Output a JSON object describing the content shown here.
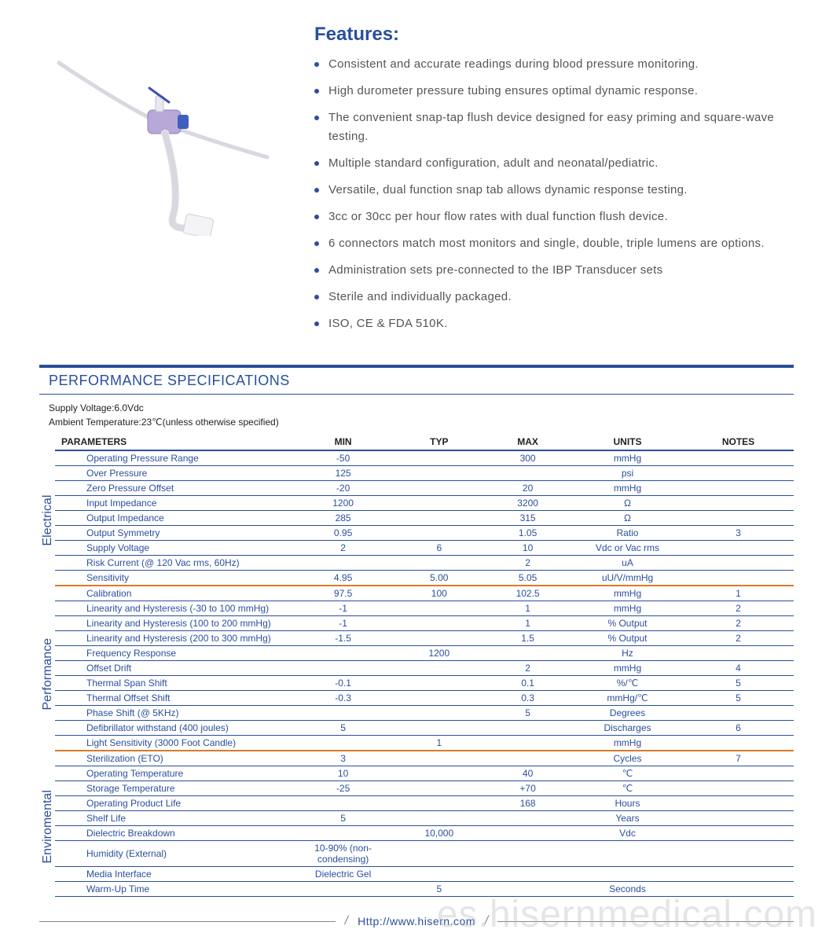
{
  "colors": {
    "accent": "#2a4f9c",
    "group_divider": "#d97a2a",
    "text": "#555",
    "watermark": "rgba(180,180,180,0.35)"
  },
  "features": {
    "title": "Features:",
    "items": [
      "Consistent and accurate readings during blood pressure monitoring.",
      "High durometer pressure tubing ensures optimal dynamic response.",
      "The convenient snap-tap flush device designed for easy priming and square-wave testing.",
      "Multiple standard configuration, adult and neonatal/pediatric.",
      "Versatile, dual function snap tab allows dynamic response testing.",
      "3cc or 30cc per hour flow rates with dual function flush device.",
      "6 connectors match most monitors and single, double, triple lumens are options.",
      "Administration sets pre-connected to the IBP Transducer sets",
      "Sterile and individually packaged.",
      "ISO, CE & FDA 510K."
    ]
  },
  "specs": {
    "heading": "PERFORMANCE SPECIFICATIONS",
    "meta": [
      "Supply Voltage:6.0Vdc",
      "Ambient Temperature:23℃(unless otherwise specified)"
    ],
    "columns": [
      "PARAMETERS",
      "MIN",
      "TYP",
      "MAX",
      "UNITS",
      "NOTES"
    ],
    "col_widths": [
      "32%",
      "14%",
      "12%",
      "12%",
      "15%",
      "15%"
    ],
    "groups": [
      {
        "label": "Electrical",
        "rows": [
          {
            "param": "Operating Pressure Range",
            "min": "-50",
            "typ": "",
            "max": "300",
            "units": "mmHg",
            "notes": ""
          },
          {
            "param": "Over  Pressure",
            "min": "125",
            "typ": "",
            "max": "",
            "units": "psi",
            "notes": ""
          },
          {
            "param": "Zero Pressure Offset",
            "min": "-20",
            "typ": "",
            "max": "20",
            "units": "mmHg",
            "notes": ""
          },
          {
            "param": "Input Impedance",
            "min": "1200",
            "typ": "",
            "max": "3200",
            "units": "Ω",
            "notes": ""
          },
          {
            "param": "Output Impedance",
            "min": "285",
            "typ": "",
            "max": "315",
            "units": "Ω",
            "notes": ""
          },
          {
            "param": "Output Symmetry",
            "min": "0.95",
            "typ": "",
            "max": "1.05",
            "units": "Ratio",
            "notes": "3"
          },
          {
            "param": "Supply Voltage",
            "min": "2",
            "typ": "6",
            "max": "10",
            "units": "Vdc or Vac rms",
            "notes": ""
          },
          {
            "param": "Risk Current (@ 120 Vac rms, 60Hz)",
            "min": "",
            "typ": "",
            "max": "2",
            "units": "uA",
            "notes": ""
          },
          {
            "param": "Sensitivity",
            "min": "4.95",
            "typ": "5.00",
            "max": "5.05",
            "units": "uU/V/mmHg",
            "notes": ""
          }
        ]
      },
      {
        "label": "Performance",
        "rows": [
          {
            "param": "Calibration",
            "min": "97.5",
            "typ": "100",
            "max": "102.5",
            "units": "mmHg",
            "notes": "1"
          },
          {
            "param": "Linearity and Hysteresis (-30 to 100 mmHg)",
            "min": "-1",
            "typ": "",
            "max": "1",
            "units": "mmHg",
            "notes": "2"
          },
          {
            "param": "Linearity and Hysteresis (100 to 200 mmHg)",
            "min": "-1",
            "typ": "",
            "max": "1",
            "units": "% Output",
            "notes": "2"
          },
          {
            "param": "Linearity and Hysteresis (200 to 300 mmHg)",
            "min": "-1.5",
            "typ": "",
            "max": "1.5",
            "units": "% Output",
            "notes": "2"
          },
          {
            "param": "Frequency Response",
            "min": "",
            "typ": "1200",
            "max": "",
            "units": "Hz",
            "notes": ""
          },
          {
            "param": "Offset Drift",
            "min": "",
            "typ": "",
            "max": "2",
            "units": "mmHg",
            "notes": "4"
          },
          {
            "param": "Thermal Span Shift",
            "min": "-0.1",
            "typ": "",
            "max": "0.1",
            "units": "%/℃",
            "notes": "5"
          },
          {
            "param": "Thermal Offset Shift",
            "min": "-0.3",
            "typ": "",
            "max": "0.3",
            "units": "mmHg/℃",
            "notes": "5"
          },
          {
            "param": "Phase Shift (@ 5KHz)",
            "min": "",
            "typ": "",
            "max": "5",
            "units": "Degrees",
            "notes": ""
          },
          {
            "param": "Defibrillator withstand (400 joules)",
            "min": "5",
            "typ": "",
            "max": "",
            "units": "Discharges",
            "notes": "6"
          },
          {
            "param": "Light Sensitivity (3000 Foot Candle)",
            "min": "",
            "typ": "1",
            "max": "",
            "units": "mmHg",
            "notes": ""
          }
        ]
      },
      {
        "label": "Enviromental",
        "rows": [
          {
            "param": "Sterilization (ETO)",
            "min": "3",
            "typ": "",
            "max": "",
            "units": "Cycles",
            "notes": "7"
          },
          {
            "param": "Operating Temperature",
            "min": "10",
            "typ": "",
            "max": "40",
            "units": "℃",
            "notes": ""
          },
          {
            "param": "Storage Temperature",
            "min": "-25",
            "typ": "",
            "max": "+70",
            "units": "℃",
            "notes": ""
          },
          {
            "param": "Operating Product Life",
            "min": "",
            "typ": "",
            "max": "168",
            "units": "Hours",
            "notes": ""
          },
          {
            "param": "Shelf Life",
            "min": "5",
            "typ": "",
            "max": "",
            "units": "Years",
            "notes": ""
          },
          {
            "param": "Dielectric Breakdown",
            "min": "",
            "typ": "10,000",
            "max": "",
            "units": "Vdc",
            "notes": ""
          },
          {
            "param": "Humidity (External)",
            "min": "10-90% (non-condensing)",
            "typ": "",
            "max": "",
            "units": "",
            "notes": ""
          },
          {
            "param": "Media Interface",
            "min": "Dielectric Gel",
            "typ": "",
            "max": "",
            "units": "",
            "notes": ""
          },
          {
            "param": "Warm-Up Time",
            "min": "",
            "typ": "5",
            "max": "",
            "units": "Seconds",
            "notes": ""
          }
        ]
      }
    ]
  },
  "footer": {
    "url": "Http://www.hisern.com"
  },
  "watermark": "es.hisernmedical.com"
}
